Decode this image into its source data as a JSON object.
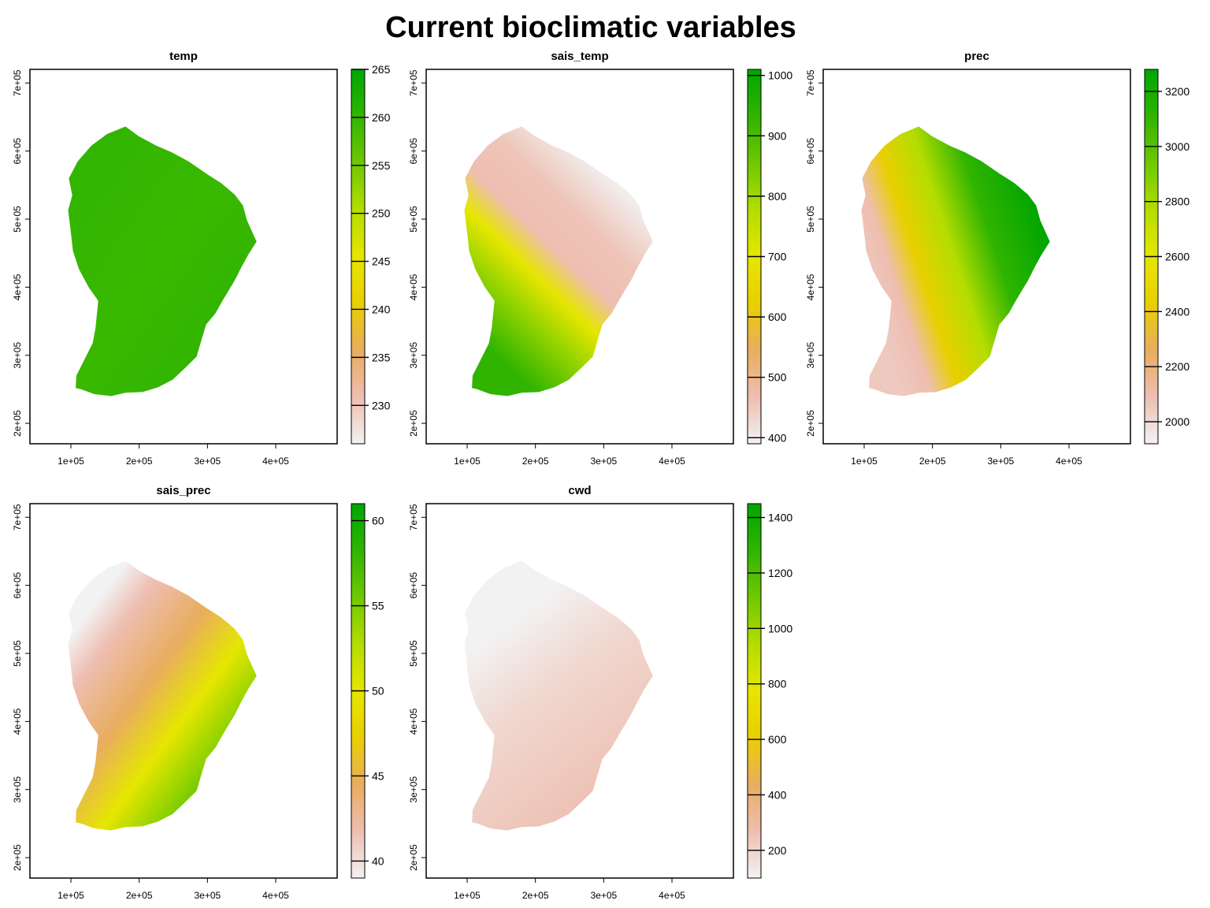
{
  "page": {
    "title": "Current bioclimatic variables"
  },
  "chart_data": [
    {
      "type": "heatmap",
      "title": "temp",
      "xlim": [
        40000,
        490000
      ],
      "ylim": [
        170000,
        720000
      ],
      "x_ticks": [
        100000,
        200000,
        300000,
        400000
      ],
      "x_tick_labels": [
        "1e+05",
        "2e+05",
        "3e+05",
        "4e+05"
      ],
      "y_ticks": [
        200000,
        300000,
        400000,
        500000,
        600000,
        700000
      ],
      "y_tick_labels": [
        "2e+05",
        "3e+05",
        "4e+05",
        "5e+05",
        "6e+05",
        "7e+05"
      ],
      "legend": {
        "min": 226,
        "max": 265,
        "ticks": [
          230,
          235,
          240,
          245,
          250,
          255,
          260,
          265
        ]
      },
      "pattern": "mostly high values (dark green) across the territory with scattered lower patches in the interior highlands",
      "grid": false,
      "legend_position": "right"
    },
    {
      "type": "heatmap",
      "title": "sais_temp",
      "xlim": [
        40000,
        490000
      ],
      "ylim": [
        170000,
        720000
      ],
      "x_ticks": [
        100000,
        200000,
        300000,
        400000
      ],
      "x_tick_labels": [
        "1e+05",
        "2e+05",
        "3e+05",
        "4e+05"
      ],
      "y_ticks": [
        200000,
        300000,
        400000,
        500000,
        600000,
        700000
      ],
      "y_tick_labels": [
        "2e+05",
        "3e+05",
        "4e+05",
        "5e+05",
        "6e+05",
        "7e+05"
      ],
      "legend": {
        "min": 390,
        "max": 1010,
        "ticks": [
          400,
          500,
          600,
          700,
          800,
          900,
          1000
        ]
      },
      "pattern": "low values in the north-east, increasing toward the south-west",
      "grid": false,
      "legend_position": "right"
    },
    {
      "type": "heatmap",
      "title": "prec",
      "xlim": [
        40000,
        490000
      ],
      "ylim": [
        170000,
        720000
      ],
      "x_ticks": [
        100000,
        200000,
        300000,
        400000
      ],
      "x_tick_labels": [
        "1e+05",
        "2e+05",
        "3e+05",
        "4e+05"
      ],
      "y_ticks": [
        200000,
        300000,
        400000,
        500000,
        600000,
        700000
      ],
      "y_tick_labels": [
        "2e+05",
        "3e+05",
        "4e+05",
        "5e+05",
        "6e+05",
        "7e+05"
      ],
      "legend": {
        "min": 1920,
        "max": 3280,
        "ticks": [
          2000,
          2200,
          2400,
          2600,
          2800,
          3000,
          3200
        ]
      },
      "pattern": "high values in the north-east, low values in the west and south-west",
      "grid": false,
      "legend_position": "right"
    },
    {
      "type": "heatmap",
      "title": "sais_prec",
      "xlim": [
        40000,
        490000
      ],
      "ylim": [
        170000,
        720000
      ],
      "x_ticks": [
        100000,
        200000,
        300000,
        400000
      ],
      "x_tick_labels": [
        "1e+05",
        "2e+05",
        "3e+05",
        "4e+05"
      ],
      "y_ticks": [
        200000,
        300000,
        400000,
        500000,
        600000,
        700000
      ],
      "y_tick_labels": [
        "2e+05",
        "3e+05",
        "4e+05",
        "5e+05",
        "6e+05",
        "7e+05"
      ],
      "legend": {
        "min": 39,
        "max": 61,
        "ticks": [
          40,
          45,
          50,
          55,
          60
        ]
      },
      "pattern": "low values in the north-west, increasing toward the south and east coast",
      "grid": false,
      "legend_position": "right"
    },
    {
      "type": "heatmap",
      "title": "cwd",
      "xlim": [
        40000,
        490000
      ],
      "ylim": [
        170000,
        720000
      ],
      "x_ticks": [
        100000,
        200000,
        300000,
        400000
      ],
      "x_tick_labels": [
        "1e+05",
        "2e+05",
        "3e+05",
        "4e+05"
      ],
      "y_ticks": [
        200000,
        300000,
        400000,
        500000,
        600000,
        700000
      ],
      "y_tick_labels": [
        "2e+05",
        "3e+05",
        "4e+05",
        "5e+05",
        "6e+05",
        "7e+05"
      ],
      "legend": {
        "min": 100,
        "max": 1450,
        "ticks": [
          200,
          400,
          600,
          800,
          1000,
          1200,
          1400
        ]
      },
      "pattern": "uniformly low values with higher values along the north-east coast",
      "grid": false,
      "legend_position": "right"
    }
  ],
  "colors": {
    "ramp": [
      "#f2f2f2",
      "#eebeb1",
      "#e8ad5f",
      "#e9cf00",
      "#e6e600",
      "#b3dd00",
      "#6fc800",
      "#30b400",
      "#00a600"
    ],
    "frame": "#000000",
    "background": "#ffffff"
  }
}
